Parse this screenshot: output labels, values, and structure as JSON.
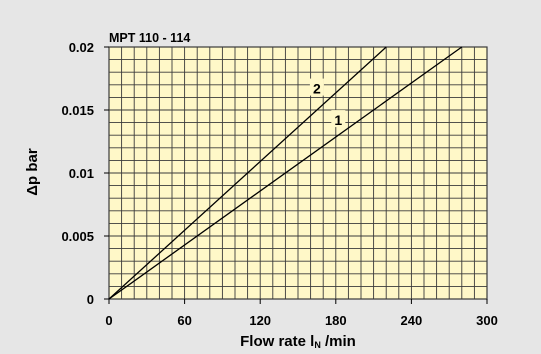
{
  "chart_data": {
    "type": "line",
    "title": "MPT 110 - 114",
    "xlabel_main": "Flow rate l",
    "xlabel_sub": "N",
    "xlabel_unit": " /min",
    "ylabel": "Δp bar",
    "xlim": [
      0,
      300
    ],
    "ylim": [
      0,
      0.02
    ],
    "x_ticks": [
      0,
      60,
      120,
      180,
      240,
      300
    ],
    "y_ticks": [
      0,
      0.005,
      0.01,
      0.015,
      0.02
    ],
    "y_tick_labels": [
      "0",
      "0.005",
      "0.01",
      "0.015",
      "0.02"
    ],
    "grid": true,
    "series": [
      {
        "name": "1",
        "x": [
          0,
          280
        ],
        "y": [
          0,
          0.02
        ]
      },
      {
        "name": "2",
        "x": [
          0,
          220
        ],
        "y": [
          0,
          0.02
        ]
      }
    ],
    "annotations": [
      {
        "text": "2",
        "x": 165,
        "y": 0.0167
      },
      {
        "text": "1",
        "x": 182,
        "y": 0.0142
      }
    ]
  },
  "colors": {
    "background": "#e6e6e6",
    "plot_fill": "#fff8c8",
    "grid": "#3a3a3a",
    "line": "#000000"
  }
}
